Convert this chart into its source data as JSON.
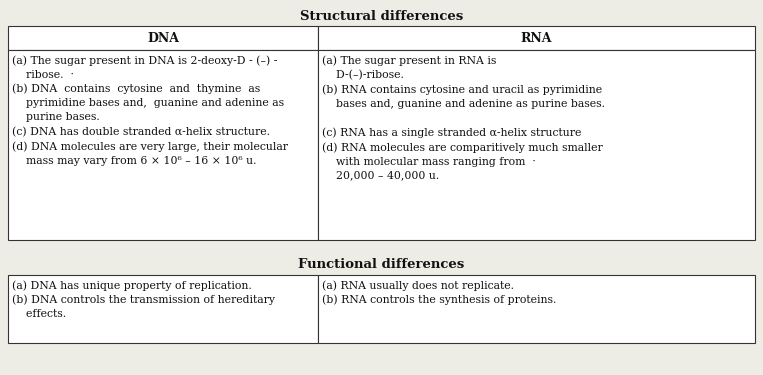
{
  "title1": "Structural differences",
  "title2": "Functional differences",
  "header_dna": "DNA",
  "header_rna": "RNA",
  "struct_dna_text": "(a) The sugar present in DNA is 2-deoxy-D - (–) -\n    ribose.  ·\n(b) DNA  contains  cytosine  and  thymine  as\n    pyrimidine bases and,  guanine and adenine as\n    purine bases.\n(c) DNA has double stranded α-helix structure.\n(d) DNA molecules are very large, their molecular\n    mass may vary from 6 × 10⁶ – 16 × 10⁶ u.",
  "struct_rna_text": "(a) The sugar present in RNA is\n    D-(–)-ribose.\n(b) RNA contains cytosine and uracil as pyrimidine\n    bases and, guanine and adenine as purine bases.\n\n(c) RNA has a single stranded α-helix structure\n(d) RNA molecules are comparitively much smaller\n    with molecular mass ranging from  ·\n    20,000 – 40,000 u.",
  "func_dna_text": "(a) DNA has unique property of replication.\n(b) DNA controls the transmission of hereditary\n    effects.",
  "func_rna_text": "(a) RNA usually does not replicate.\n(b) RNA controls the synthesis of proteins.",
  "bg_color": "#eeede5",
  "border_color": "#333333",
  "text_color": "#111111",
  "title_fontsize": 9.5,
  "header_fontsize": 9.0,
  "cell_fontsize": 7.8,
  "fig_width": 7.63,
  "fig_height": 3.75,
  "dpi": 100
}
